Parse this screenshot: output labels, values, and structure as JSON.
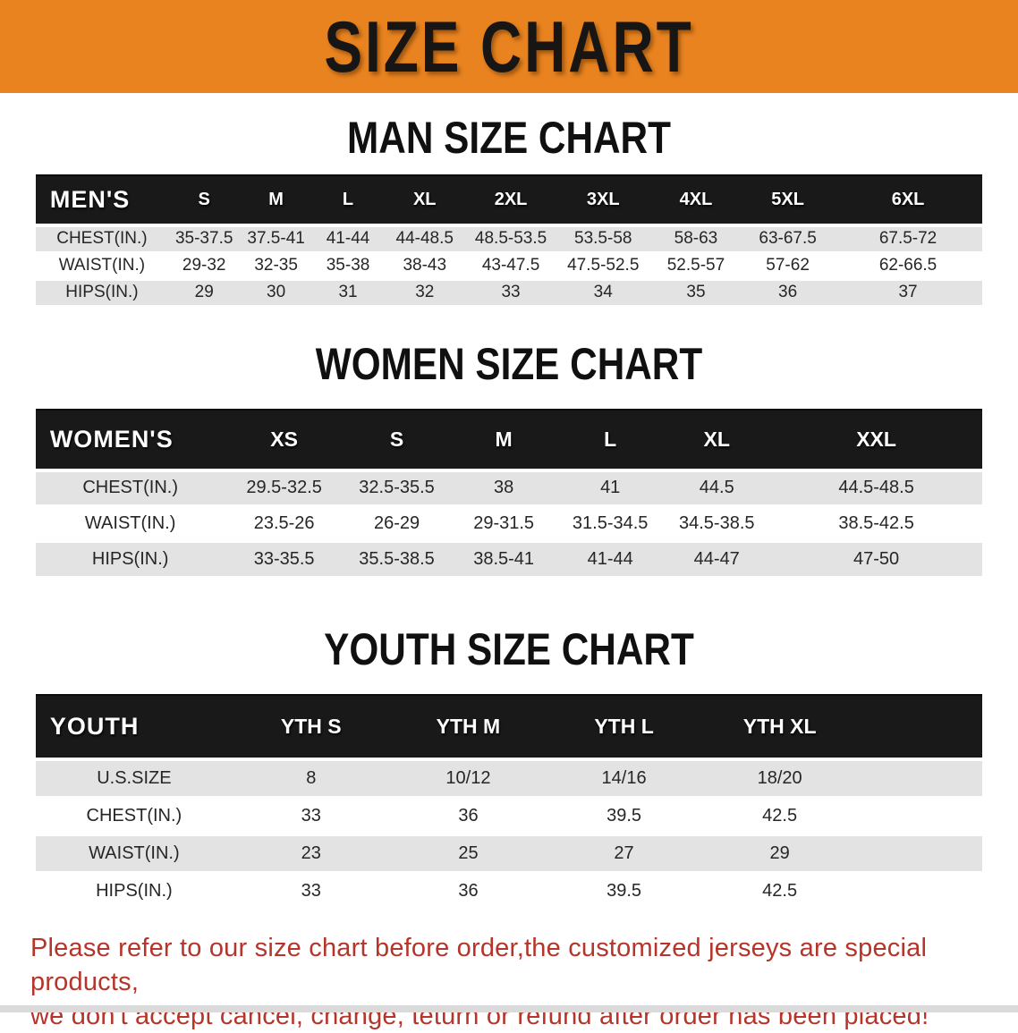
{
  "banner": {
    "title": "SIZE CHART"
  },
  "sections": {
    "men": {
      "heading": "MAN SIZE CHART",
      "table": {
        "header": [
          "MEN'S",
          "S",
          "M",
          "L",
          "XL",
          "2XL",
          "3XL",
          "4XL",
          "5XL",
          "6XL"
        ],
        "rows": [
          [
            "CHEST(IN.)",
            "35-37.5",
            "37.5-41",
            "41-44",
            "44-48.5",
            "48.5-53.5",
            "53.5-58",
            "58-63",
            "63-67.5",
            "67.5-72"
          ],
          [
            "WAIST(IN.)",
            "29-32",
            "32-35",
            "35-38",
            "38-43",
            "43-47.5",
            "47.5-52.5",
            "52.5-57",
            "57-62",
            "62-66.5"
          ],
          [
            "HIPS(IN.)",
            "29",
            "30",
            "31",
            "32",
            "33",
            "34",
            "35",
            "36",
            "37"
          ]
        ]
      }
    },
    "women": {
      "heading": "WOMEN SIZE CHART",
      "table": {
        "header": [
          "WOMEN'S",
          "XS",
          "S",
          "M",
          "L",
          "XL",
          "XXL"
        ],
        "rows": [
          [
            "CHEST(IN.)",
            "29.5-32.5",
            "32.5-35.5",
            "38",
            "41",
            "44.5",
            "44.5-48.5"
          ],
          [
            "WAIST(IN.)",
            "23.5-26",
            "26-29",
            "29-31.5",
            "31.5-34.5",
            "34.5-38.5",
            "38.5-42.5"
          ],
          [
            "HIPS(IN.)",
            "33-35.5",
            "35.5-38.5",
            "38.5-41",
            "41-44",
            "44-47",
            "47-50"
          ]
        ]
      }
    },
    "youth": {
      "heading": "YOUTH SIZE CHART",
      "table": {
        "header": [
          "YOUTH",
          "YTH S",
          "YTH M",
          "YTH L",
          "YTH XL"
        ],
        "rows": [
          [
            "U.S.SIZE",
            "8",
            "10/12",
            "14/16",
            "18/20"
          ],
          [
            "CHEST(IN.)",
            "33",
            "36",
            "39.5",
            "42.5"
          ],
          [
            "WAIST(IN.)",
            "23",
            "25",
            "27",
            "29"
          ],
          [
            "HIPS(IN.)",
            "33",
            "36",
            "39.5",
            "42.5"
          ]
        ]
      }
    }
  },
  "footer": {
    "line1": "Please refer to our size chart before order,the customized jerseys are special products,",
    "line2": "we don't accept cancel, change, teturn or refund after order has been placed!"
  },
  "colors": {
    "banner_bg": "#e9831f",
    "table_header_bg": "#191919",
    "row_stripe": "#e3e3e3",
    "footer_text": "#b5352a"
  }
}
